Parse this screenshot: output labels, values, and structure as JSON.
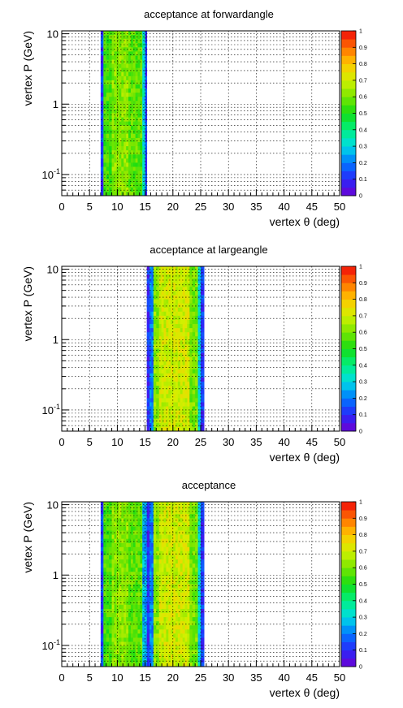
{
  "chart_data": [
    {
      "type": "heatmap",
      "title": "acceptance at forwardangle",
      "xlabel": "vertex θ (deg)",
      "ylabel": "vertex P (GeV)",
      "xlim": [
        0,
        50
      ],
      "ylim": [
        0.05,
        11
      ],
      "y_scale": "log",
      "x_ticks": [
        "0",
        "5",
        "10",
        "15",
        "20",
        "25",
        "30",
        "35",
        "40",
        "45",
        "50"
      ],
      "y_ticks": [
        {
          "label": "10",
          "value": 10
        },
        {
          "label": "1",
          "value": 1
        },
        {
          "label": "10",
          "sup": "-1",
          "value": 0.1
        }
      ],
      "grid": true,
      "colorbar": {
        "range": [
          0,
          1
        ],
        "ticks": [
          "0",
          "0.1",
          "0.2",
          "0.3",
          "0.4",
          "0.5",
          "0.6",
          "0.7",
          "0.8",
          "0.9",
          "1"
        ]
      },
      "bands": [
        {
          "x_start": 7,
          "x_end": 7.5,
          "value": 0.12
        },
        {
          "x_start": 7.5,
          "x_end": 9,
          "value": 0.55
        },
        {
          "x_start": 9,
          "x_end": 12,
          "value": 0.62
        },
        {
          "x_start": 12,
          "x_end": 14.5,
          "value": 0.57
        },
        {
          "x_start": 14.5,
          "x_end": 15,
          "value": 0.33
        },
        {
          "x_start": 15,
          "x_end": 15.3,
          "value": 0.12
        }
      ]
    },
    {
      "type": "heatmap",
      "title": "acceptance at largeangle",
      "xlabel": "vertex θ (deg)",
      "ylabel": "vertex P (GeV)",
      "xlim": [
        0,
        50
      ],
      "ylim": [
        0.05,
        11
      ],
      "y_scale": "log",
      "x_ticks": [
        "0",
        "5",
        "10",
        "15",
        "20",
        "25",
        "30",
        "35",
        "40",
        "45",
        "50"
      ],
      "y_ticks": [
        {
          "label": "10",
          "value": 10
        },
        {
          "label": "1",
          "value": 1
        },
        {
          "label": "10",
          "sup": "-1",
          "value": 0.1
        }
      ],
      "grid": true,
      "colorbar": {
        "range": [
          0,
          1
        ],
        "ticks": [
          "0",
          "0.1",
          "0.2",
          "0.3",
          "0.4",
          "0.5",
          "0.6",
          "0.7",
          "0.8",
          "0.9",
          "1"
        ]
      },
      "bands": [
        {
          "x_start": 15.3,
          "x_end": 15.8,
          "value": 0.1
        },
        {
          "x_start": 15.8,
          "x_end": 16.5,
          "value": 0.2
        },
        {
          "x_start": 16.5,
          "x_end": 17.5,
          "value": 0.62
        },
        {
          "x_start": 17.5,
          "x_end": 23,
          "value": 0.7
        },
        {
          "x_start": 23,
          "x_end": 24.5,
          "value": 0.6
        },
        {
          "x_start": 24.5,
          "x_end": 25,
          "value": 0.3
        },
        {
          "x_start": 25,
          "x_end": 25.6,
          "value": 0.12
        }
      ]
    },
    {
      "type": "heatmap",
      "title": "acceptance",
      "xlabel": "vertex θ (deg)",
      "ylabel": "vetex P (GeV)",
      "xlim": [
        0,
        50
      ],
      "ylim": [
        0.05,
        11
      ],
      "y_scale": "log",
      "x_ticks": [
        "0",
        "5",
        "10",
        "15",
        "20",
        "25",
        "30",
        "35",
        "40",
        "45",
        "50"
      ],
      "y_ticks": [
        {
          "label": "10",
          "value": 10
        },
        {
          "label": "1",
          "value": 1
        },
        {
          "label": "10",
          "sup": "-1",
          "value": 0.1
        }
      ],
      "grid": true,
      "colorbar": {
        "range": [
          0,
          1
        ],
        "ticks": [
          "0",
          "0.1",
          "0.2",
          "0.3",
          "0.4",
          "0.5",
          "0.6",
          "0.7",
          "0.8",
          "0.9",
          "1"
        ]
      },
      "bands": [
        {
          "x_start": 7,
          "x_end": 7.5,
          "value": 0.12
        },
        {
          "x_start": 7.5,
          "x_end": 9,
          "value": 0.55
        },
        {
          "x_start": 9,
          "x_end": 12,
          "value": 0.62
        },
        {
          "x_start": 12,
          "x_end": 14.5,
          "value": 0.57
        },
        {
          "x_start": 14.5,
          "x_end": 15.3,
          "value": 0.25
        },
        {
          "x_start": 15.3,
          "x_end": 15.8,
          "value": 0.1
        },
        {
          "x_start": 15.8,
          "x_end": 16.5,
          "value": 0.2
        },
        {
          "x_start": 16.5,
          "x_end": 17.5,
          "value": 0.62
        },
        {
          "x_start": 17.5,
          "x_end": 23,
          "value": 0.7
        },
        {
          "x_start": 23,
          "x_end": 24.5,
          "value": 0.6
        },
        {
          "x_start": 24.5,
          "x_end": 25,
          "value": 0.3
        },
        {
          "x_start": 25,
          "x_end": 25.6,
          "value": 0.12
        }
      ]
    }
  ]
}
